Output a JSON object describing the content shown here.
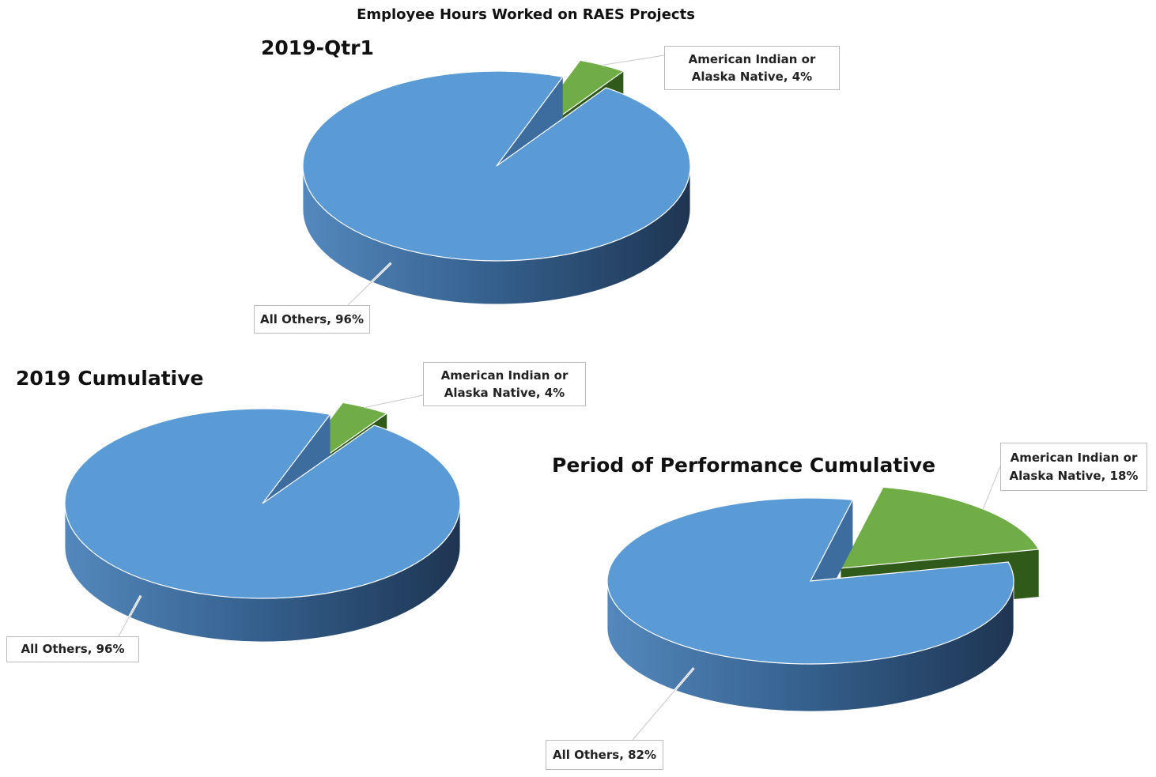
{
  "title": "Employee Hours Worked on RAES Projects",
  "chart_data": [
    {
      "type": "pie",
      "title": "2019-Qtr1",
      "categories": [
        "American Indian or Alaska Native",
        "All Others"
      ],
      "values": [
        4,
        96
      ],
      "value_labels": [
        "4%",
        "96%"
      ],
      "colors": [
        "#70ad47",
        "#5b9bd5"
      ]
    },
    {
      "type": "pie",
      "title": "2019 Cumulative",
      "categories": [
        "American Indian or Alaska Native",
        "All Others"
      ],
      "values": [
        4,
        96
      ],
      "value_labels": [
        "4%",
        "96%"
      ],
      "colors": [
        "#70ad47",
        "#5b9bd5"
      ]
    },
    {
      "type": "pie",
      "title": "Period of Performance Cumulative",
      "categories": [
        "American Indian or Alaska Native",
        "All Others"
      ],
      "values": [
        18,
        82
      ],
      "value_labels": [
        "18%",
        "82%"
      ],
      "colors": [
        "#70ad47",
        "#5b9bd5"
      ]
    }
  ]
}
